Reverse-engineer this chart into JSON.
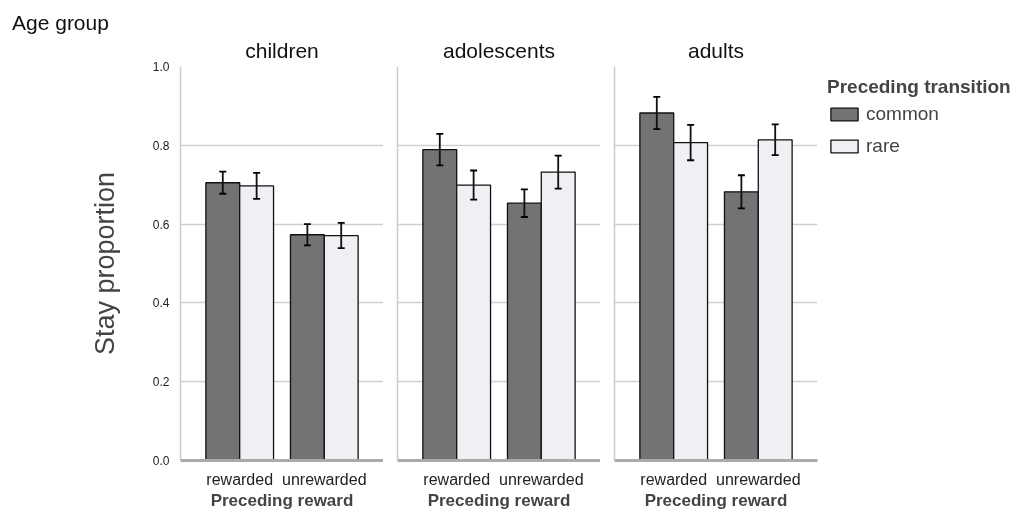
{
  "chart_data": [
    {
      "type": "bar",
      "title": "children",
      "xlabel": "Preceding reward",
      "ylabel": "Stay proportion",
      "annotations": [
        "Age group"
      ],
      "categories": [
        "rewarded",
        "unrewarded"
      ],
      "ylim": [
        0,
        1
      ],
      "yticks": [
        {
          "value": 0,
          "label": "0.0"
        },
        0.2,
        0.4,
        0.6,
        0.8,
        {
          "value": 1,
          "label": "1.0"
        }
      ],
      "grid": "y",
      "legend": false,
      "series": [
        {
          "color": "#737373",
          "values": [
            0.705,
            0.573
          ],
          "errors": [
            0.028,
            0.027
          ]
        },
        {
          "color": "#f0eff4",
          "values": [
            0.697,
            0.571
          ],
          "errors": [
            0.033,
            0.032
          ]
        }
      ]
    },
    {
      "type": "bar",
      "title": "adolescents",
      "xlabel": "Preceding reward",
      "categories": [
        "rewarded",
        "unrewarded"
      ],
      "ylim": [
        0,
        1
      ],
      "yticks": [
        0,
        0.2,
        0.4,
        0.6,
        0.8,
        1
      ],
      "tick_labels": "x",
      "grid": "y",
      "legend": false,
      "series": [
        {
          "color": "#737373",
          "values": [
            0.789,
            0.653
          ],
          "errors": [
            0.04,
            0.035
          ]
        },
        {
          "color": "#f0eff4",
          "values": [
            0.699,
            0.732
          ],
          "errors": [
            0.037,
            0.042
          ]
        }
      ]
    },
    {
      "type": "bar",
      "title": "adults",
      "xlabel": "Preceding reward",
      "legend_title": "Preceding transition",
      "categories": [
        "rewarded",
        "unrewarded"
      ],
      "ylim": [
        0,
        1
      ],
      "yticks": [
        0,
        0.2,
        0.4,
        0.6,
        0.8,
        1
      ],
      "tick_labels": "x",
      "grid": "y",
      "legend": "right",
      "series": [
        {
          "name": "common",
          "color": "#737373",
          "values": [
            0.882,
            0.682
          ],
          "errors": [
            0.041,
            0.042
          ]
        },
        {
          "name": "rare",
          "color": "#f0eff4",
          "values": [
            0.807,
            0.814
          ],
          "errors": [
            0.045,
            0.039
          ]
        }
      ]
    }
  ]
}
